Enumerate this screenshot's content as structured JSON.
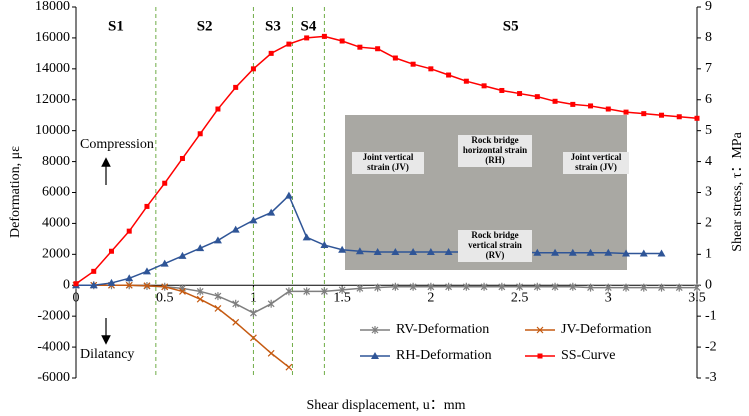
{
  "chart_data": {
    "type": "line",
    "title_annotations": [
      "Compression",
      "Dilatancy"
    ],
    "xlabel": "Shear displacement, u：mm",
    "ylabel": "Deformation, με",
    "y2label": "Shear stress, τ：MPa",
    "x": [
      0,
      0.1,
      0.2,
      0.3,
      0.4,
      0.5,
      0.6,
      0.7,
      0.8,
      0.9,
      1.0,
      1.1,
      1.2,
      1.3,
      1.4,
      1.5,
      1.6,
      1.7,
      1.8,
      1.9,
      2.0,
      2.1,
      2.2,
      2.3,
      2.4,
      2.5,
      2.6,
      2.7,
      2.8,
      2.9,
      3.0,
      3.1,
      3.2,
      3.3,
      3.4,
      3.5
    ],
    "series": [
      {
        "name": "RV-Deformation",
        "color": "#7f7f7f",
        "marker": "star",
        "values": [
          0,
          0,
          0,
          0,
          -50,
          -100,
          -200,
          -400,
          -700,
          -1200,
          -1800,
          -1200,
          -400,
          -400,
          -400,
          -300,
          -200,
          -150,
          -100,
          -100,
          -100,
          -100,
          -100,
          -100,
          -100,
          -100,
          -100,
          -100,
          -100,
          -150,
          -150,
          -150,
          -150,
          -150,
          -150,
          -150
        ]
      },
      {
        "name": "JV-Deformation",
        "color": "#c55a11",
        "marker": "x",
        "values": [
          0,
          0,
          0,
          0,
          -30,
          -100,
          -400,
          -900,
          -1500,
          -2400,
          -3400,
          -4400,
          -5300,
          null,
          null,
          null,
          null,
          null,
          null,
          null,
          null,
          null,
          null,
          null,
          null,
          null,
          null,
          null,
          null,
          null,
          null,
          null,
          null,
          null,
          null,
          null
        ]
      },
      {
        "name": "RH-Deformation",
        "color": "#2f5597",
        "marker": "triangle",
        "values": [
          0,
          0,
          150,
          450,
          900,
          1400,
          1900,
          2400,
          2900,
          3600,
          4200,
          4700,
          5800,
          3100,
          2600,
          2300,
          2200,
          2150,
          2150,
          2150,
          2150,
          2150,
          2150,
          2150,
          2150,
          2150,
          2100,
          2100,
          2100,
          2100,
          2100,
          2050,
          2050,
          2050,
          null,
          null
        ]
      },
      {
        "name": "SS-Curve",
        "color": "#ff0000",
        "marker": "square",
        "axis": "y2",
        "values": [
          0.05,
          0.45,
          1.1,
          1.75,
          2.55,
          3.3,
          4.1,
          4.9,
          5.7,
          6.4,
          7.0,
          7.5,
          7.8,
          8.0,
          8.05,
          7.9,
          7.7,
          7.65,
          7.35,
          7.15,
          7.0,
          6.8,
          6.6,
          6.45,
          6.3,
          6.2,
          6.1,
          5.95,
          5.85,
          5.8,
          5.7,
          5.6,
          5.55,
          5.5,
          5.45,
          5.4
        ]
      }
    ],
    "xlim": [
      0,
      3.5
    ],
    "xticks": [
      0,
      0.5,
      1,
      1.5,
      2,
      2.5,
      3,
      3.5
    ],
    "ylim": [
      -6000,
      18000
    ],
    "yticks": [
      -6000,
      -4000,
      -2000,
      0,
      2000,
      4000,
      6000,
      8000,
      10000,
      12000,
      14000,
      16000,
      18000
    ],
    "y2lim": [
      -3,
      9
    ],
    "y2ticks": [
      -3,
      -2,
      -1,
      0,
      1,
      2,
      3,
      4,
      5,
      6,
      7,
      8,
      9
    ],
    "stage_lines": [
      0.45,
      1.0,
      1.22,
      1.4
    ],
    "stages": [
      "S1",
      "S2",
      "S3",
      "S4",
      "S5"
    ],
    "legend": "lower right",
    "inset_labels": [
      "Joint vertical strain (JV)",
      "Rock bridge horizontal strain (RH)",
      "Joint vertical strain (JV)",
      "Rock bridge vertical strain (RV)"
    ]
  }
}
